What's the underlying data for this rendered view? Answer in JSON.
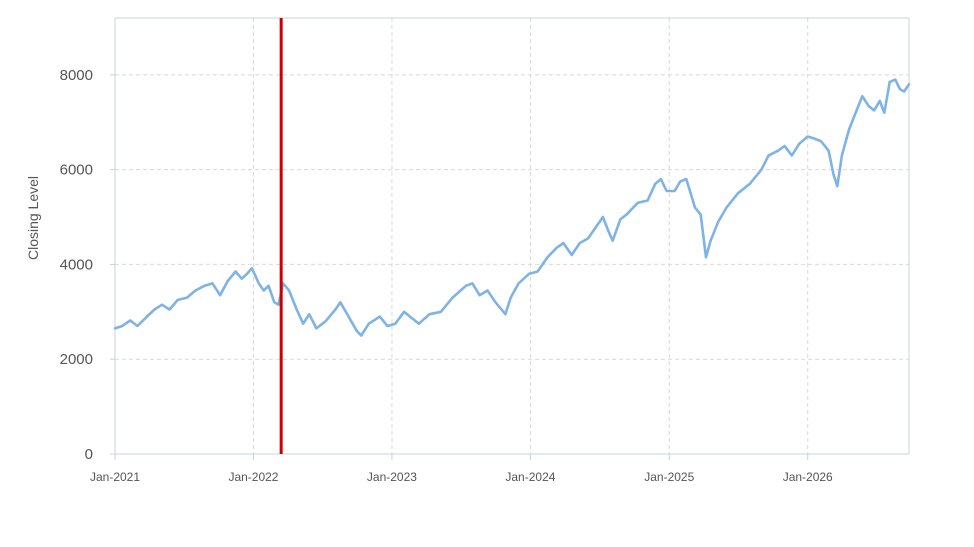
{
  "colors": {
    "line": "#7fb3e6",
    "marker_line": "#cc0000",
    "grid": "#d9d9d9",
    "frame": "#c8d0e0",
    "text": "#555555",
    "background": "#ffffff"
  },
  "chart_data": {
    "type": "line",
    "title": "",
    "xlabel": "",
    "ylabel": "Closing Level",
    "x_type": "date",
    "xlim": [
      "2021-01-01",
      "2026-09-25"
    ],
    "ylim": [
      0,
      9200
    ],
    "yticks": [
      0,
      2000,
      4000,
      6000,
      8000
    ],
    "xticks": [
      {
        "date": "2021-01-01",
        "label": "Jan-2021"
      },
      {
        "date": "2022-01-01",
        "label": "Jan-2022"
      },
      {
        "date": "2023-01-01",
        "label": "Jan-2023"
      },
      {
        "date": "2024-01-01",
        "label": "Jan-2024"
      },
      {
        "date": "2025-01-01",
        "label": "Jan-2025"
      },
      {
        "date": "2026-01-01",
        "label": "Jan-2026"
      }
    ],
    "grid": true,
    "legend": "none",
    "vertical_marker": {
      "date": "2022-03-15"
    },
    "series": [
      {
        "points": [
          [
            "2021-01-01",
            2650
          ],
          [
            "2021-01-20",
            2700
          ],
          [
            "2021-02-10",
            2820
          ],
          [
            "2021-03-01",
            2700
          ],
          [
            "2021-03-20",
            2850
          ],
          [
            "2021-04-15",
            3050
          ],
          [
            "2021-05-05",
            3150
          ],
          [
            "2021-05-25",
            3050
          ],
          [
            "2021-06-15",
            3250
          ],
          [
            "2021-07-10",
            3300
          ],
          [
            "2021-08-01",
            3450
          ],
          [
            "2021-08-25",
            3550
          ],
          [
            "2021-09-15",
            3600
          ],
          [
            "2021-10-05",
            3350
          ],
          [
            "2021-10-25",
            3650
          ],
          [
            "2021-11-15",
            3850
          ],
          [
            "2021-12-01",
            3700
          ],
          [
            "2021-12-15",
            3800
          ],
          [
            "2021-12-28",
            3920
          ],
          [
            "2022-01-15",
            3600
          ],
          [
            "2022-01-28",
            3450
          ],
          [
            "2022-02-10",
            3550
          ],
          [
            "2022-02-25",
            3200
          ],
          [
            "2022-03-08",
            3150
          ],
          [
            "2022-03-20",
            3600
          ],
          [
            "2022-04-05",
            3450
          ],
          [
            "2022-04-25",
            3050
          ],
          [
            "2022-05-12",
            2750
          ],
          [
            "2022-05-28",
            2950
          ],
          [
            "2022-06-16",
            2650
          ],
          [
            "2022-07-10",
            2800
          ],
          [
            "2022-08-05",
            3050
          ],
          [
            "2022-08-18",
            3200
          ],
          [
            "2022-09-05",
            2950
          ],
          [
            "2022-09-30",
            2600
          ],
          [
            "2022-10-12",
            2500
          ],
          [
            "2022-11-01",
            2750
          ],
          [
            "2022-11-30",
            2900
          ],
          [
            "2022-12-20",
            2700
          ],
          [
            "2023-01-10",
            2750
          ],
          [
            "2023-02-02",
            3000
          ],
          [
            "2023-02-25",
            2850
          ],
          [
            "2023-03-13",
            2750
          ],
          [
            "2023-04-10",
            2950
          ],
          [
            "2023-05-10",
            3000
          ],
          [
            "2023-06-10",
            3300
          ],
          [
            "2023-07-15",
            3550
          ],
          [
            "2023-08-01",
            3600
          ],
          [
            "2023-08-20",
            3350
          ],
          [
            "2023-09-10",
            3450
          ],
          [
            "2023-10-01",
            3200
          ],
          [
            "2023-10-27",
            2950
          ],
          [
            "2023-11-10",
            3300
          ],
          [
            "2023-12-01",
            3600
          ],
          [
            "2023-12-28",
            3800
          ],
          [
            "2024-01-20",
            3850
          ],
          [
            "2024-02-15",
            4150
          ],
          [
            "2024-03-10",
            4350
          ],
          [
            "2024-03-28",
            4450
          ],
          [
            "2024-04-19",
            4200
          ],
          [
            "2024-05-10",
            4450
          ],
          [
            "2024-06-01",
            4550
          ],
          [
            "2024-07-10",
            5000
          ],
          [
            "2024-07-25",
            4700
          ],
          [
            "2024-08-05",
            4500
          ],
          [
            "2024-08-25",
            4950
          ],
          [
            "2024-09-10",
            5050
          ],
          [
            "2024-10-10",
            5300
          ],
          [
            "2024-11-05",
            5350
          ],
          [
            "2024-11-25",
            5700
          ],
          [
            "2024-12-10",
            5800
          ],
          [
            "2024-12-25",
            5550
          ],
          [
            "2025-01-15",
            5550
          ],
          [
            "2025-01-30",
            5750
          ],
          [
            "2025-02-15",
            5800
          ],
          [
            "2025-03-10",
            5200
          ],
          [
            "2025-03-25",
            5050
          ],
          [
            "2025-04-08",
            4150
          ],
          [
            "2025-04-20",
            4500
          ],
          [
            "2025-05-10",
            4900
          ],
          [
            "2025-06-01",
            5200
          ],
          [
            "2025-07-01",
            5500
          ],
          [
            "2025-08-01",
            5700
          ],
          [
            "2025-09-01",
            6000
          ],
          [
            "2025-09-20",
            6300
          ],
          [
            "2025-10-15",
            6400
          ],
          [
            "2025-11-01",
            6500
          ],
          [
            "2025-11-20",
            6300
          ],
          [
            "2025-12-10",
            6550
          ],
          [
            "2026-01-01",
            6700
          ],
          [
            "2026-01-20",
            6650
          ],
          [
            "2026-02-05",
            6600
          ],
          [
            "2026-02-25",
            6400
          ],
          [
            "2026-03-10",
            5900
          ],
          [
            "2026-03-20",
            5650
          ],
          [
            "2026-04-01",
            6300
          ],
          [
            "2026-04-20",
            6850
          ],
          [
            "2026-05-10",
            7250
          ],
          [
            "2026-05-25",
            7550
          ],
          [
            "2026-06-10",
            7350
          ],
          [
            "2026-06-25",
            7250
          ],
          [
            "2026-07-10",
            7450
          ],
          [
            "2026-07-22",
            7200
          ],
          [
            "2026-08-05",
            7850
          ],
          [
            "2026-08-20",
            7900
          ],
          [
            "2026-09-01",
            7700
          ],
          [
            "2026-09-12",
            7650
          ],
          [
            "2026-09-25",
            7800
          ]
        ]
      }
    ]
  }
}
